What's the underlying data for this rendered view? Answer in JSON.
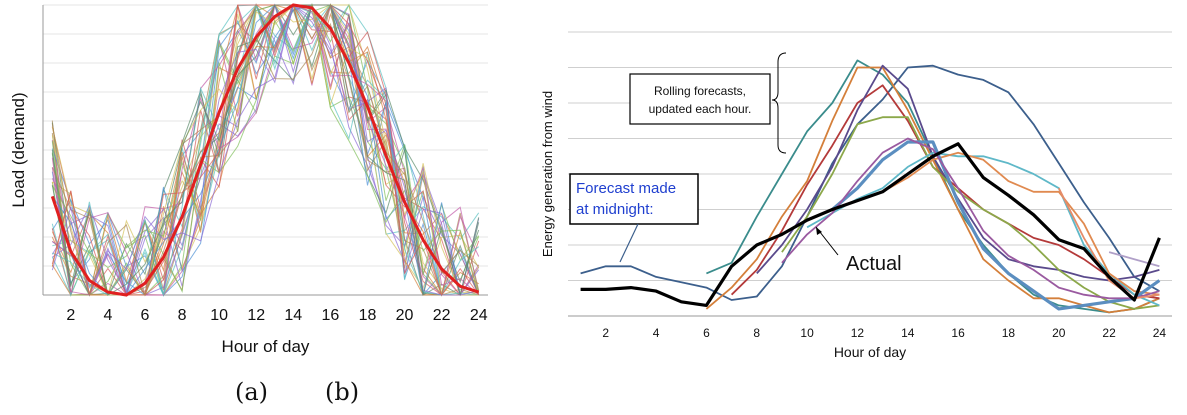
{
  "chart_data": [
    {
      "type": "line",
      "panel_caption": "(a)",
      "xlabel": "Hour of day",
      "ylabel": "Load (demand)",
      "xlim": [
        0.5,
        24.5
      ],
      "ylim": [
        0,
        1
      ],
      "x_ticks": [
        2,
        4,
        6,
        8,
        10,
        12,
        14,
        16,
        18,
        20,
        22,
        24
      ],
      "grid": true,
      "legend": "none",
      "highlight_series": {
        "color": "#e02020",
        "x": [
          1,
          2,
          3,
          4,
          5,
          6,
          7,
          8,
          9,
          10,
          11,
          12,
          13,
          14,
          15,
          16,
          17,
          18,
          19,
          20,
          21,
          22,
          23,
          24
        ],
        "values": [
          0.34,
          0.15,
          0.05,
          0.01,
          0.0,
          0.04,
          0.13,
          0.27,
          0.45,
          0.63,
          0.78,
          0.89,
          0.96,
          1.0,
          0.99,
          0.92,
          0.8,
          0.65,
          0.48,
          0.32,
          0.19,
          0.09,
          0.03,
          0.01
        ]
      },
      "scenarios": {
        "count": 40,
        "note_colors": [
          "#4a8fd4",
          "#d47f3a",
          "#7fbf5a",
          "#c25aa8",
          "#5ac2c2",
          "#d4c25a",
          "#8a6ad4",
          "#d45a5a",
          "#5a8a6a",
          "#aa8855"
        ]
      }
    },
    {
      "type": "line",
      "panel_caption": "(b)",
      "xlabel": "Hour of day",
      "ylabel": "Energy generation from wind",
      "xlim": [
        0.5,
        24.5
      ],
      "ylim": [
        0,
        8
      ],
      "x_ticks": [
        2,
        4,
        6,
        8,
        10,
        12,
        14,
        16,
        18,
        20,
        22,
        24
      ],
      "grid": true,
      "legend": "none",
      "series": [
        {
          "name": "Actual",
          "color": "#000000",
          "width": 3.2,
          "x": [
            1,
            2,
            3,
            4,
            5,
            6,
            7,
            8,
            9,
            10,
            11,
            12,
            13,
            14,
            15,
            16,
            17,
            18,
            19,
            20,
            21,
            22,
            23,
            24
          ],
          "values": [
            0.75,
            0.75,
            0.8,
            0.7,
            0.4,
            0.3,
            1.4,
            2.0,
            2.3,
            2.7,
            3.0,
            3.25,
            3.5,
            4.0,
            4.5,
            4.85,
            3.9,
            3.4,
            2.85,
            2.15,
            1.9,
            1.1,
            0.45,
            2.2
          ]
        },
        {
          "color": "#3c5f8c",
          "x": [
            1,
            2,
            3,
            4,
            5,
            6,
            7,
            8,
            9,
            10,
            11,
            12,
            13,
            14,
            15,
            16,
            17,
            18,
            19,
            20,
            21,
            22,
            23,
            24
          ],
          "values": [
            1.2,
            1.4,
            1.4,
            1.1,
            0.95,
            0.8,
            0.45,
            0.55,
            1.4,
            2.8,
            4.3,
            5.4,
            6.1,
            7.0,
            7.05,
            6.8,
            6.65,
            6.3,
            5.4,
            4.3,
            3.2,
            2.2,
            1.1,
            0.7
          ]
        },
        {
          "color": "#3a8c8c",
          "x": [
            6,
            7,
            8,
            9,
            10,
            11,
            12,
            13,
            14,
            15,
            16,
            17,
            18,
            19,
            20,
            21,
            22,
            23,
            24
          ],
          "values": [
            1.2,
            1.5,
            2.8,
            4.0,
            5.2,
            6.0,
            7.2,
            6.8,
            6.0,
            4.5,
            3.0,
            2.0,
            1.2,
            0.6,
            0.3,
            0.2,
            0.1,
            0.2,
            0.5
          ]
        },
        {
          "color": "#d47f3a",
          "x": [
            6,
            7,
            8,
            9,
            10,
            11,
            12,
            13,
            14,
            15,
            16,
            17,
            18,
            19,
            20,
            21,
            22,
            23,
            24
          ],
          "values": [
            0.2,
            0.8,
            1.6,
            2.8,
            3.8,
            5.5,
            7.0,
            7.0,
            5.8,
            4.4,
            3.0,
            1.6,
            1.0,
            0.5,
            0.5,
            0.3,
            0.1,
            0.2,
            0.5
          ]
        },
        {
          "color": "#b43a3a",
          "x": [
            7,
            8,
            9,
            10,
            11,
            12,
            13,
            14,
            15,
            16,
            17,
            18,
            19,
            20,
            21,
            22,
            23,
            24
          ],
          "values": [
            0.6,
            1.3,
            2.4,
            3.7,
            4.8,
            6.0,
            6.5,
            5.5,
            4.2,
            3.6,
            3.0,
            2.6,
            2.2,
            2.0,
            1.6,
            1.1,
            0.6,
            0.5
          ]
        },
        {
          "color": "#5a4a8c",
          "x": [
            8,
            9,
            10,
            11,
            12,
            13,
            14,
            15,
            16,
            17,
            18,
            19,
            20,
            21,
            22,
            23,
            24
          ],
          "values": [
            1.2,
            2.0,
            3.0,
            4.2,
            5.8,
            7.05,
            6.4,
            4.5,
            3.3,
            2.2,
            1.6,
            1.4,
            1.3,
            1.1,
            1.0,
            1.1,
            1.3
          ]
        },
        {
          "color": "#8ca84a",
          "x": [
            9,
            10,
            11,
            12,
            13,
            14,
            15,
            16,
            17,
            18,
            19,
            20,
            21,
            22,
            23,
            24
          ],
          "values": [
            1.8,
            2.8,
            4.0,
            5.4,
            5.6,
            5.6,
            4.2,
            3.5,
            3.0,
            2.6,
            2.0,
            1.3,
            0.8,
            0.4,
            0.2,
            0.3
          ]
        },
        {
          "color": "#5fb8c8",
          "x": [
            10,
            11,
            12,
            13,
            14,
            15,
            16,
            17,
            18,
            19,
            20,
            21,
            22,
            23,
            24
          ],
          "values": [
            2.5,
            2.9,
            3.3,
            3.6,
            4.2,
            4.6,
            4.5,
            4.5,
            4.3,
            4.0,
            3.6,
            2.0,
            1.2,
            0.6,
            0.3
          ]
        },
        {
          "color": "#e08a50",
          "x": [
            13,
            14,
            15,
            16,
            17,
            18,
            19,
            20,
            21,
            22,
            23,
            24
          ],
          "values": [
            3.5,
            3.9,
            4.4,
            4.6,
            4.4,
            3.8,
            3.5,
            3.5,
            2.6,
            1.2,
            0.7,
            0.6
          ]
        },
        {
          "color": "#5b8ec0",
          "width": 3.2,
          "x": [
            11,
            12,
            13,
            14,
            15,
            16,
            17,
            18,
            19,
            20,
            21,
            22,
            23,
            24
          ],
          "values": [
            3.0,
            3.6,
            4.4,
            4.9,
            4.9,
            3.2,
            1.9,
            1.2,
            0.7,
            0.2,
            0.3,
            0.4,
            0.5,
            1.0
          ]
        },
        {
          "color": "#9a5aa0",
          "x": [
            9,
            10,
            11,
            12,
            13,
            14,
            15,
            16,
            17,
            18,
            19,
            20,
            21,
            22,
            23,
            24
          ],
          "values": [
            1.5,
            2.3,
            2.9,
            3.8,
            4.6,
            5.0,
            4.7,
            3.6,
            2.4,
            1.7,
            1.3,
            0.8,
            0.6,
            0.5,
            0.5,
            0.7
          ]
        },
        {
          "color": "#b0a0c8",
          "x": [
            22,
            23,
            24
          ],
          "values": [
            1.8,
            1.6,
            1.4
          ]
        },
        {
          "color": "#e58c6a",
          "x": [
            20,
            21,
            22,
            23,
            24
          ],
          "values": [
            3.6,
            2.2,
            1.0,
            0.5,
            0.6
          ]
        }
      ],
      "annotations": {
        "actual_label": "Actual",
        "forecast_midnight": [
          "Forecast made",
          "at midnight:"
        ],
        "rolling": [
          "Rolling forecasts,",
          "updated each hour."
        ]
      }
    }
  ]
}
